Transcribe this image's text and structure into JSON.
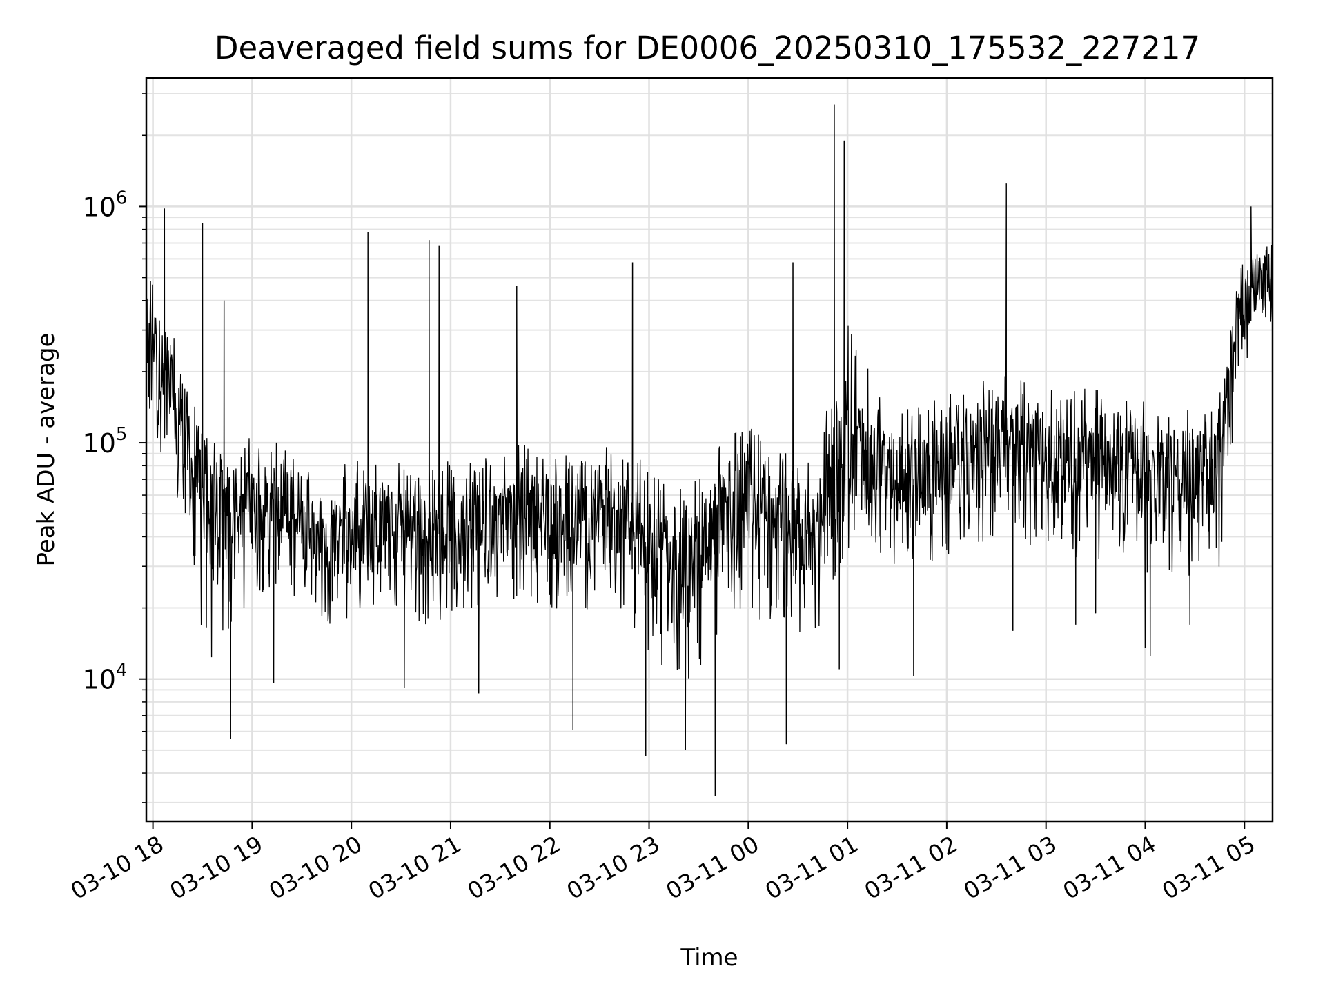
{
  "chart_data": {
    "type": "line",
    "title": "Deaveraged field sums for DE0006_20250310_175532_227217",
    "xlabel": "Time",
    "ylabel": "Peak ADU - average",
    "y_scale": "log",
    "ylim": [
      2500,
      3500000
    ],
    "xlim": [
      "2025-03-10 17:56",
      "2025-03-11 05:17"
    ],
    "grid": true,
    "line_color": "#000000",
    "x_ticks": [
      {
        "t": "2025-03-10 18:00",
        "label": "03-10 18"
      },
      {
        "t": "2025-03-10 19:00",
        "label": "03-10 19"
      },
      {
        "t": "2025-03-10 20:00",
        "label": "03-10 20"
      },
      {
        "t": "2025-03-10 21:00",
        "label": "03-10 21"
      },
      {
        "t": "2025-03-10 22:00",
        "label": "03-10 22"
      },
      {
        "t": "2025-03-10 23:00",
        "label": "03-10 23"
      },
      {
        "t": "2025-03-11 00:00",
        "label": "03-11 00"
      },
      {
        "t": "2025-03-11 01:00",
        "label": "03-11 01"
      },
      {
        "t": "2025-03-11 02:00",
        "label": "03-11 02"
      },
      {
        "t": "2025-03-11 03:00",
        "label": "03-11 03"
      },
      {
        "t": "2025-03-11 04:00",
        "label": "03-11 04"
      },
      {
        "t": "2025-03-11 05:00",
        "label": "03-11 05"
      }
    ],
    "y_ticks": [
      {
        "value": 10000,
        "base": "10",
        "exp": "4"
      },
      {
        "value": 100000,
        "base": "10",
        "exp": "5"
      },
      {
        "value": 1000000,
        "base": "10",
        "exp": "6"
      }
    ],
    "x": [
      "2025-03-10 17:56",
      "2025-03-10 18:05",
      "2025-03-10 18:15",
      "2025-03-10 18:25",
      "2025-03-10 18:35",
      "2025-03-10 18:45",
      "2025-03-10 19:00",
      "2025-03-10 19:15",
      "2025-03-10 19:30",
      "2025-03-10 19:45",
      "2025-03-10 20:00",
      "2025-03-10 20:15",
      "2025-03-10 20:30",
      "2025-03-10 20:45",
      "2025-03-10 21:00",
      "2025-03-10 21:15",
      "2025-03-10 21:30",
      "2025-03-10 21:45",
      "2025-03-10 22:00",
      "2025-03-10 22:15",
      "2025-03-10 22:30",
      "2025-03-10 22:45",
      "2025-03-10 23:00",
      "2025-03-10 23:15",
      "2025-03-10 23:30",
      "2025-03-10 23:45",
      "2025-03-11 00:00",
      "2025-03-11 00:15",
      "2025-03-11 00:30",
      "2025-03-11 00:45",
      "2025-03-11 00:55",
      "2025-03-11 01:05",
      "2025-03-11 01:15",
      "2025-03-11 01:30",
      "2025-03-11 01:45",
      "2025-03-11 02:00",
      "2025-03-11 02:15",
      "2025-03-11 02:30",
      "2025-03-11 02:45",
      "2025-03-11 03:00",
      "2025-03-11 03:15",
      "2025-03-11 03:30",
      "2025-03-11 03:45",
      "2025-03-11 04:00",
      "2025-03-11 04:15",
      "2025-03-11 04:30",
      "2025-03-11 04:45",
      "2025-03-11 04:55",
      "2025-03-11 05:05",
      "2025-03-11 05:17"
    ],
    "y": [
      300000,
      220000,
      150000,
      75000,
      55000,
      50000,
      55000,
      52000,
      45000,
      40000,
      42000,
      45000,
      43000,
      40000,
      42000,
      44000,
      47000,
      50000,
      48000,
      45000,
      50000,
      47000,
      35000,
      28000,
      30000,
      50000,
      55000,
      45000,
      40000,
      50000,
      85000,
      90000,
      75000,
      70000,
      70000,
      80000,
      85000,
      100000,
      95000,
      90000,
      85000,
      90000,
      80000,
      75000,
      75000,
      70000,
      80000,
      300000,
      450000,
      500000
    ],
    "y_upper": [
      600000,
      400000,
      250000,
      150000,
      110000,
      90000,
      110000,
      100000,
      85000,
      80000,
      85000,
      90000,
      85000,
      80000,
      85000,
      90000,
      95000,
      100000,
      95000,
      90000,
      100000,
      95000,
      80000,
      65000,
      70000,
      120000,
      120000,
      100000,
      90000,
      110000,
      400000,
      300000,
      180000,
      150000,
      150000,
      160000,
      170000,
      200000,
      190000,
      180000,
      170000,
      180000,
      160000,
      150000,
      150000,
      140000,
      160000,
      550000,
      650000,
      700000
    ],
    "y_lower": [
      120000,
      90000,
      50000,
      20000,
      10000,
      15000,
      22000,
      25000,
      20000,
      17000,
      18000,
      20000,
      19000,
      17000,
      18000,
      20000,
      21000,
      22000,
      20000,
      18000,
      21000,
      19000,
      13000,
      9000,
      10000,
      18000,
      18000,
      17000,
      15000,
      17000,
      30000,
      40000,
      35000,
      30000,
      30000,
      32000,
      35000,
      40000,
      38000,
      35000,
      30000,
      32000,
      30000,
      28000,
      28000,
      26000,
      28000,
      120000,
      200000,
      280000
    ],
    "spikes": [
      {
        "t": "2025-03-10 18:07",
        "value": 980000
      },
      {
        "t": "2025-03-10 18:30",
        "value": 850000
      },
      {
        "t": "2025-03-10 18:43",
        "value": 400000
      },
      {
        "t": "2025-03-10 18:47",
        "value": 5600
      },
      {
        "t": "2025-03-10 19:13",
        "value": 9600
      },
      {
        "t": "2025-03-10 20:10",
        "value": 780000
      },
      {
        "t": "2025-03-10 20:32",
        "value": 9200
      },
      {
        "t": "2025-03-10 20:47",
        "value": 720000
      },
      {
        "t": "2025-03-10 20:53",
        "value": 680000
      },
      {
        "t": "2025-03-10 21:17",
        "value": 8700
      },
      {
        "t": "2025-03-10 21:40",
        "value": 460000
      },
      {
        "t": "2025-03-10 22:14",
        "value": 6100
      },
      {
        "t": "2025-03-10 22:50",
        "value": 580000
      },
      {
        "t": "2025-03-10 22:58",
        "value": 4700
      },
      {
        "t": "2025-03-10 23:22",
        "value": 5000
      },
      {
        "t": "2025-03-10 23:40",
        "value": 3200
      },
      {
        "t": "2025-03-11 00:23",
        "value": 5300
      },
      {
        "t": "2025-03-11 00:27",
        "value": 580000
      },
      {
        "t": "2025-03-11 00:52",
        "value": 2700000
      },
      {
        "t": "2025-03-11 00:58",
        "value": 1900000
      },
      {
        "t": "2025-03-11 00:55",
        "value": 11000
      },
      {
        "t": "2025-03-11 01:40",
        "value": 10300
      },
      {
        "t": "2025-03-11 02:36",
        "value": 1250000
      },
      {
        "t": "2025-03-11 02:40",
        "value": 16000
      },
      {
        "t": "2025-03-11 03:18",
        "value": 17000
      },
      {
        "t": "2025-03-11 03:30",
        "value": 19000
      },
      {
        "t": "2025-03-11 04:00",
        "value": 13500
      },
      {
        "t": "2025-03-11 04:03",
        "value": 12500
      },
      {
        "t": "2025-03-11 04:27",
        "value": 17000
      },
      {
        "t": "2025-03-11 05:04",
        "value": 1000000
      }
    ]
  }
}
